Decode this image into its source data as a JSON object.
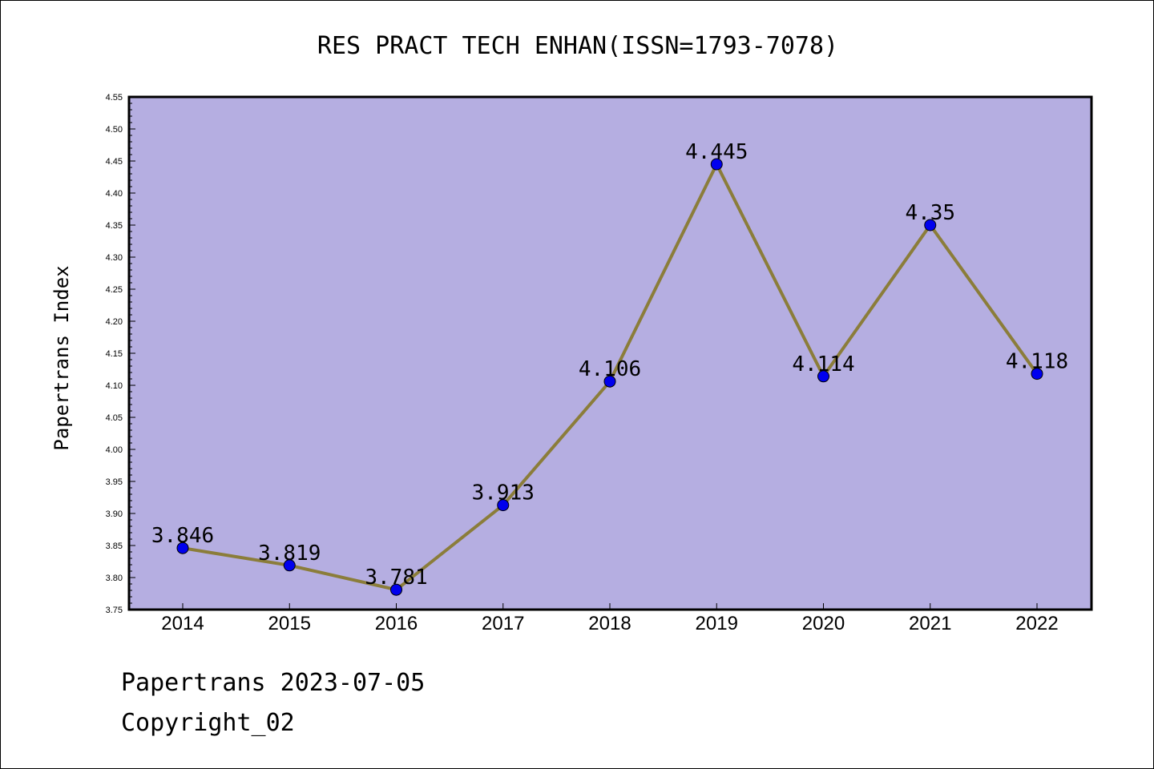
{
  "chart_data": {
    "type": "line",
    "title": "RES PRACT TECH ENHAN(ISSN=1793-7078)",
    "ylabel": "Papertrans Index",
    "xlabel": "",
    "categories": [
      "2014",
      "2015",
      "2016",
      "2017",
      "2018",
      "2019",
      "2020",
      "2021",
      "2022"
    ],
    "series": [
      {
        "values": [
          3.846,
          3.819,
          3.781,
          3.913,
          4.106,
          4.445,
          4.114,
          4.35,
          4.118
        ],
        "labels": [
          "3.846",
          "3.819",
          "3.781",
          "3.913",
          "4.106",
          "4.445",
          "4.114",
          "4.35",
          "4.118"
        ]
      }
    ],
    "ylim": [
      3.75,
      4.55
    ],
    "yticks": [
      "3.75",
      "3.80",
      "3.85",
      "3.90",
      "3.95",
      "4.00",
      "4.05",
      "4.10",
      "4.15",
      "4.20",
      "4.25",
      "4.30",
      "4.35",
      "4.40",
      "4.45",
      "4.50",
      "4.55"
    ],
    "grid": false,
    "colors": {
      "plot_background": "#b5aee1",
      "line": "#8b7d3a",
      "marker": "#0000ee"
    }
  },
  "footer": {
    "line1": "Papertrans 2023-07-05",
    "line2": "Copyright_02"
  }
}
